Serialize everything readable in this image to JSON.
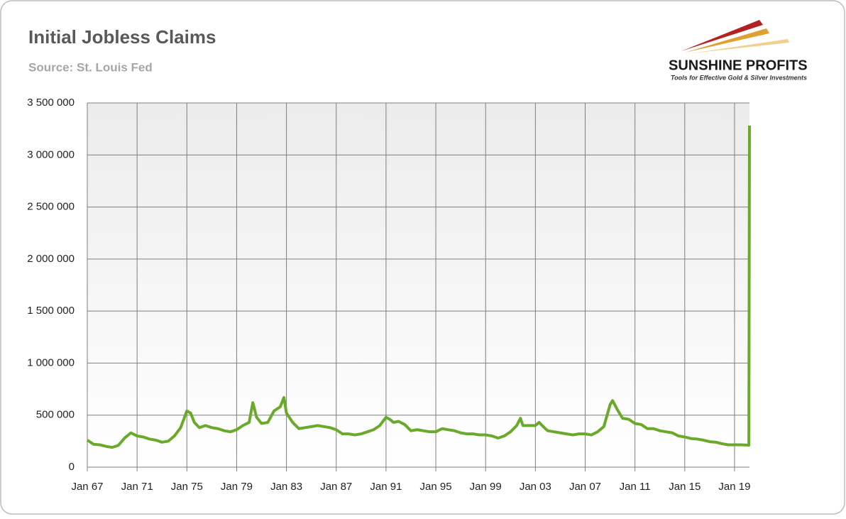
{
  "chart_data": {
    "type": "line",
    "title": "Initial Jobless Claims",
    "subtitle": "Source: St. Louis Fed",
    "logo": {
      "name": "SUNSHINE PROFITS",
      "tagline": "Tools for Effective Gold & Silver Investments"
    },
    "color": "#6aaa2a",
    "grid": true,
    "xlim": [
      1967,
      2020.2
    ],
    "xticks": [
      {
        "value": 1967,
        "label": "Jan 67"
      },
      {
        "value": 1971,
        "label": "Jan 71"
      },
      {
        "value": 1975,
        "label": "Jan 75"
      },
      {
        "value": 1979,
        "label": "Jan 79"
      },
      {
        "value": 1983,
        "label": "Jan 83"
      },
      {
        "value": 1987,
        "label": "Jan 87"
      },
      {
        "value": 1991,
        "label": "Jan 91"
      },
      {
        "value": 1995,
        "label": "Jan 95"
      },
      {
        "value": 1999,
        "label": "Jan 99"
      },
      {
        "value": 2003,
        "label": "Jan 03"
      },
      {
        "value": 2007,
        "label": "Jan 07"
      },
      {
        "value": 2011,
        "label": "Jan 11"
      },
      {
        "value": 2015,
        "label": "Jan 15"
      },
      {
        "value": 2019,
        "label": "Jan 19"
      }
    ],
    "ylim": [
      0,
      3500000
    ],
    "yticks": [
      0,
      {
        "value": 500000,
        "label": "500 000"
      },
      {
        "value": 1000000,
        "label": "1 000 000"
      },
      {
        "value": 1500000,
        "label": "1 500 000"
      },
      {
        "value": 2000000,
        "label": "2 000 000"
      },
      {
        "value": 2500000,
        "label": "2 500 000"
      },
      {
        "value": 3000000,
        "label": "3 000 000"
      },
      {
        "value": 3500000,
        "label": "3 500 000"
      }
    ],
    "x": [
      1967.0,
      1967.5,
      1968.0,
      1968.5,
      1969.0,
      1969.5,
      1970.0,
      1970.5,
      1971.0,
      1971.5,
      1972.0,
      1972.5,
      1973.0,
      1973.5,
      1974.0,
      1974.5,
      1975.0,
      1975.3,
      1975.6,
      1976.0,
      1976.5,
      1977.0,
      1977.5,
      1978.0,
      1978.5,
      1979.0,
      1979.5,
      1980.0,
      1980.3,
      1980.6,
      1981.0,
      1981.5,
      1982.0,
      1982.5,
      1982.8,
      1983.0,
      1983.5,
      1984.0,
      1984.5,
      1985.0,
      1985.5,
      1986.0,
      1986.5,
      1987.0,
      1987.5,
      1988.0,
      1988.5,
      1989.0,
      1989.5,
      1990.0,
      1990.5,
      1991.0,
      1991.3,
      1991.6,
      1992.0,
      1992.5,
      1993.0,
      1993.5,
      1994.0,
      1994.5,
      1995.0,
      1995.5,
      1996.0,
      1996.5,
      1997.0,
      1997.5,
      1998.0,
      1998.5,
      1999.0,
      1999.5,
      2000.0,
      2000.5,
      2001.0,
      2001.5,
      2001.8,
      2002.0,
      2002.5,
      2003.0,
      2003.3,
      2003.8,
      2004.0,
      2004.5,
      2005.0,
      2005.5,
      2006.0,
      2006.5,
      2007.0,
      2007.5,
      2008.0,
      2008.5,
      2009.0,
      2009.2,
      2009.6,
      2010.0,
      2010.5,
      2011.0,
      2011.5,
      2012.0,
      2012.5,
      2013.0,
      2013.5,
      2014.0,
      2014.5,
      2015.0,
      2015.5,
      2016.0,
      2016.5,
      2017.0,
      2017.5,
      2018.0,
      2018.5,
      2019.0,
      2019.5,
      2020.0,
      2020.15,
      2020.2
    ],
    "values": [
      260000,
      220000,
      215000,
      200000,
      190000,
      210000,
      280000,
      330000,
      300000,
      290000,
      270000,
      260000,
      240000,
      250000,
      300000,
      380000,
      540000,
      520000,
      430000,
      380000,
      400000,
      380000,
      370000,
      350000,
      340000,
      360000,
      400000,
      430000,
      620000,
      480000,
      420000,
      430000,
      540000,
      580000,
      670000,
      520000,
      430000,
      370000,
      380000,
      390000,
      400000,
      390000,
      380000,
      360000,
      320000,
      320000,
      310000,
      320000,
      340000,
      360000,
      400000,
      480000,
      460000,
      430000,
      440000,
      410000,
      350000,
      360000,
      350000,
      340000,
      340000,
      370000,
      360000,
      350000,
      330000,
      320000,
      320000,
      310000,
      310000,
      300000,
      280000,
      300000,
      340000,
      400000,
      470000,
      400000,
      400000,
      400000,
      430000,
      370000,
      350000,
      340000,
      330000,
      320000,
      310000,
      320000,
      320000,
      310000,
      340000,
      390000,
      600000,
      640000,
      550000,
      470000,
      460000,
      420000,
      410000,
      370000,
      370000,
      350000,
      340000,
      330000,
      300000,
      290000,
      275000,
      270000,
      260000,
      245000,
      240000,
      225000,
      215000,
      215000,
      215000,
      212000,
      211000,
      3283000
    ]
  }
}
